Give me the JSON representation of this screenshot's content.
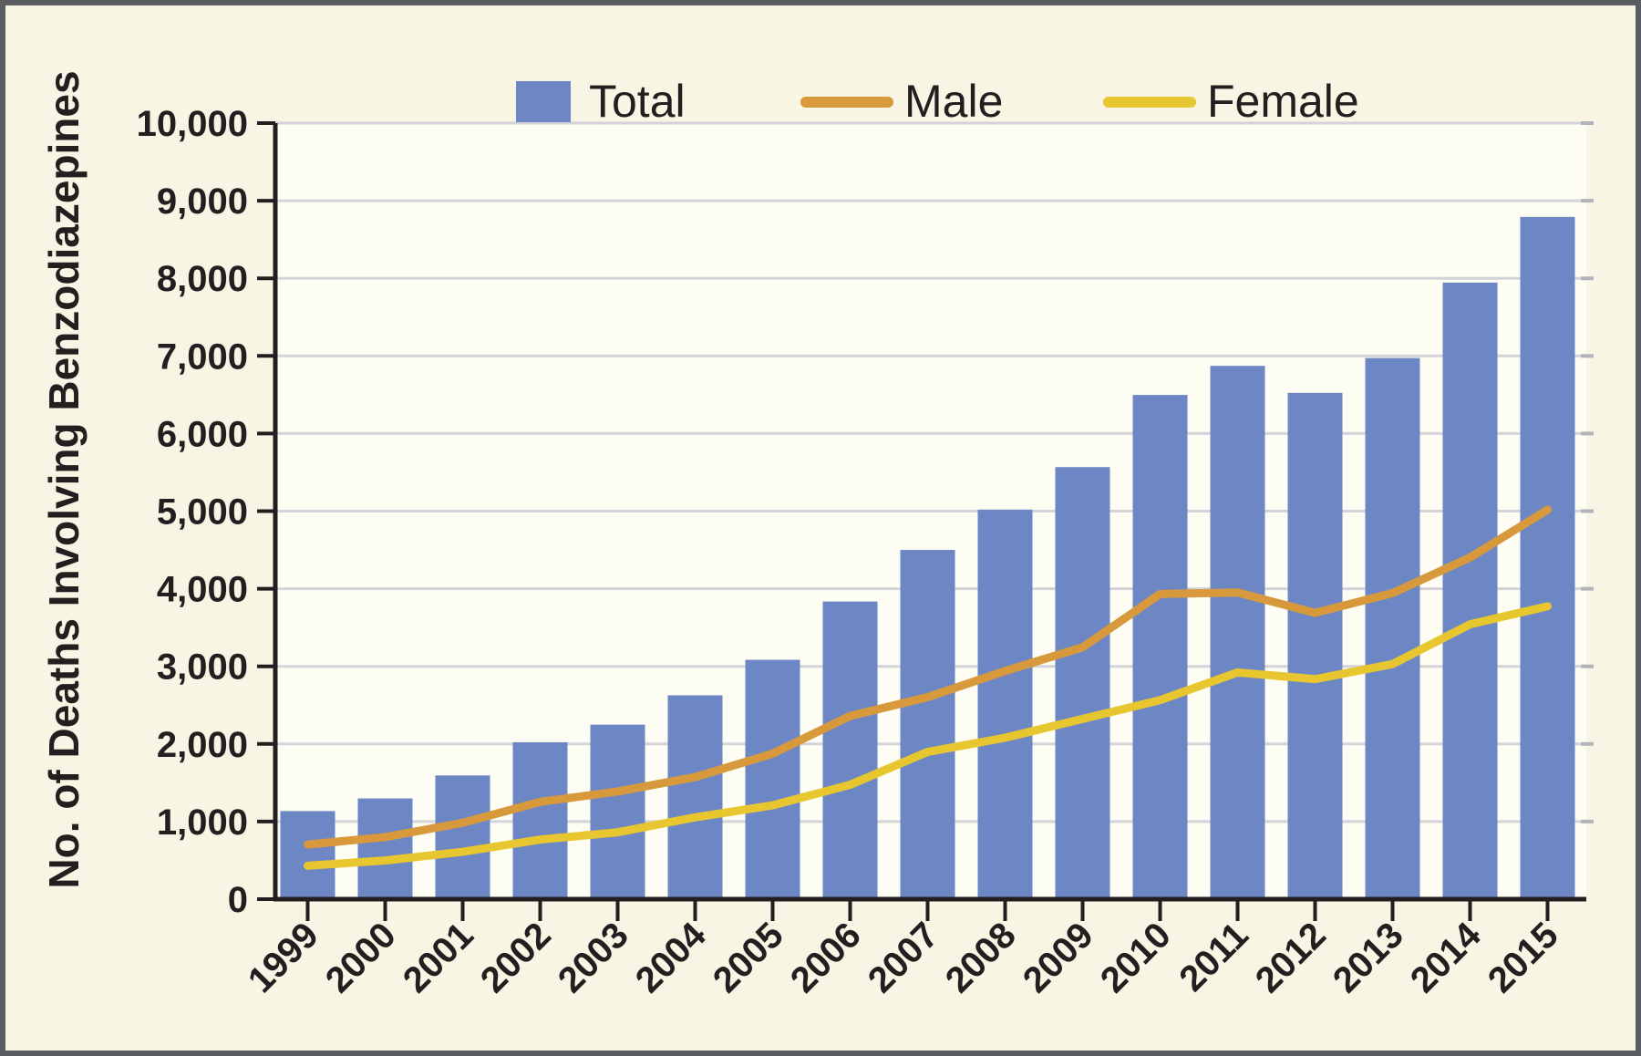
{
  "figure": {
    "background": "#f8f5e4",
    "plot_background": "#fdfdf3",
    "border_color": "#5a5e62",
    "axis_color": "#231f20",
    "grid_color": "#d3d3d9",
    "grid_stub_color": "#b3b3bb",
    "text_color": "#231f20"
  },
  "legend": {
    "position": "top",
    "items": [
      {
        "label": "Total",
        "marker": "swatch",
        "color": "#6c87c3"
      },
      {
        "label": "Male",
        "marker": "line",
        "color": "#d8993c"
      },
      {
        "label": "Female",
        "marker": "line",
        "color": "#e8c62f"
      }
    ]
  },
  "chart_data": {
    "type": "bar",
    "title": "",
    "xlabel": "",
    "ylabel": "No. of Deaths Involving Benzodiazepines",
    "ylim": [
      0,
      10000
    ],
    "ytick_interval": 1000,
    "ytick_labels": [
      "0",
      "1,000",
      "2,000",
      "3,000",
      "4,000",
      "5,000",
      "6,000",
      "7,000",
      "8,000",
      "9,000",
      "10,000"
    ],
    "grid": true,
    "legend_position": "top",
    "categories": [
      "1999",
      "2000",
      "2001",
      "2002",
      "2003",
      "2004",
      "2005",
      "2006",
      "2007",
      "2008",
      "2009",
      "2010",
      "2011",
      "2012",
      "2013",
      "2014",
      "2015"
    ],
    "series": [
      {
        "name": "Total",
        "type": "bar",
        "color": "#6c87c3",
        "values": [
          1135,
          1298,
          1594,
          2022,
          2248,
          2627,
          3084,
          3835,
          4500,
          5020,
          5567,
          6497,
          6872,
          6524,
          6973,
          7945,
          8791
        ]
      },
      {
        "name": "Male",
        "type": "line",
        "color": "#d8993c",
        "values": [
          704,
          800,
          984,
          1254,
          1387,
          1573,
          1875,
          2361,
          2603,
          2940,
          3245,
          3932,
          3951,
          3689,
          3944,
          4403,
          5017
        ]
      },
      {
        "name": "Female",
        "type": "line",
        "color": "#e8c62f",
        "values": [
          431,
          498,
          610,
          768,
          861,
          1054,
          1209,
          1474,
          1897,
          2080,
          2322,
          2565,
          2921,
          2835,
          3029,
          3542,
          3774
        ]
      }
    ]
  }
}
